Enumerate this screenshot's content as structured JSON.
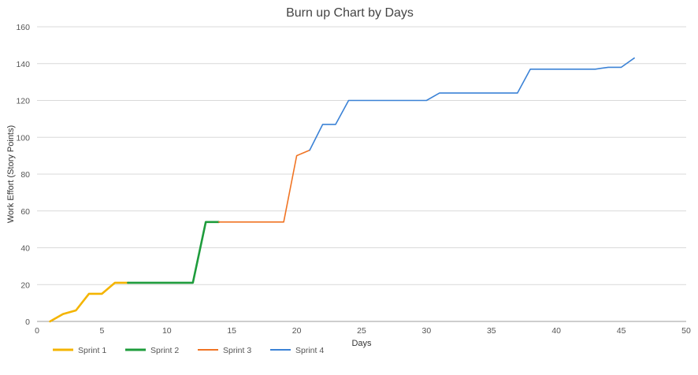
{
  "chart_data": {
    "type": "line",
    "title": "Burn up Chart by Days",
    "xlabel": "Days",
    "ylabel": "Work Effort (Story Points)",
    "xlim": [
      0,
      50
    ],
    "ylim": [
      0,
      160
    ],
    "x_ticks": [
      "0",
      "5",
      "10",
      "15",
      "20",
      "25",
      "30",
      "35",
      "40",
      "45",
      "50"
    ],
    "y_ticks": [
      "0",
      "20",
      "40",
      "60",
      "80",
      "100",
      "120",
      "140",
      "160"
    ],
    "grid": true,
    "legend_position": "bottom-left",
    "series": [
      {
        "name": "Sprint 1",
        "color": "#f4b400",
        "x": [
          1,
          2,
          3,
          4,
          5,
          6,
          7
        ],
        "y": [
          0,
          4,
          6,
          15,
          15,
          21,
          21
        ]
      },
      {
        "name": "Sprint 2",
        "color": "#1e9c3c",
        "x": [
          7,
          8,
          9,
          10,
          11,
          12,
          13,
          14
        ],
        "y": [
          21,
          21,
          21,
          21,
          21,
          21,
          54,
          54
        ]
      },
      {
        "name": "Sprint 3",
        "color": "#f07424",
        "x": [
          14,
          15,
          16,
          17,
          18,
          19,
          20,
          21
        ],
        "y": [
          54,
          54,
          54,
          54,
          54,
          54,
          90,
          93
        ]
      },
      {
        "name": "Sprint 4",
        "color": "#3b82d6",
        "x": [
          21,
          22,
          23,
          24,
          25,
          26,
          27,
          28,
          29,
          30,
          31,
          32,
          33,
          34,
          35,
          36,
          37,
          38,
          39,
          40,
          41,
          42,
          43,
          44,
          45,
          46
        ],
        "y": [
          93,
          107,
          107,
          120,
          120,
          120,
          120,
          120,
          120,
          120,
          124,
          124,
          124,
          124,
          124,
          124,
          124,
          137,
          137,
          137,
          137,
          137,
          137,
          138,
          138,
          143
        ]
      }
    ]
  }
}
